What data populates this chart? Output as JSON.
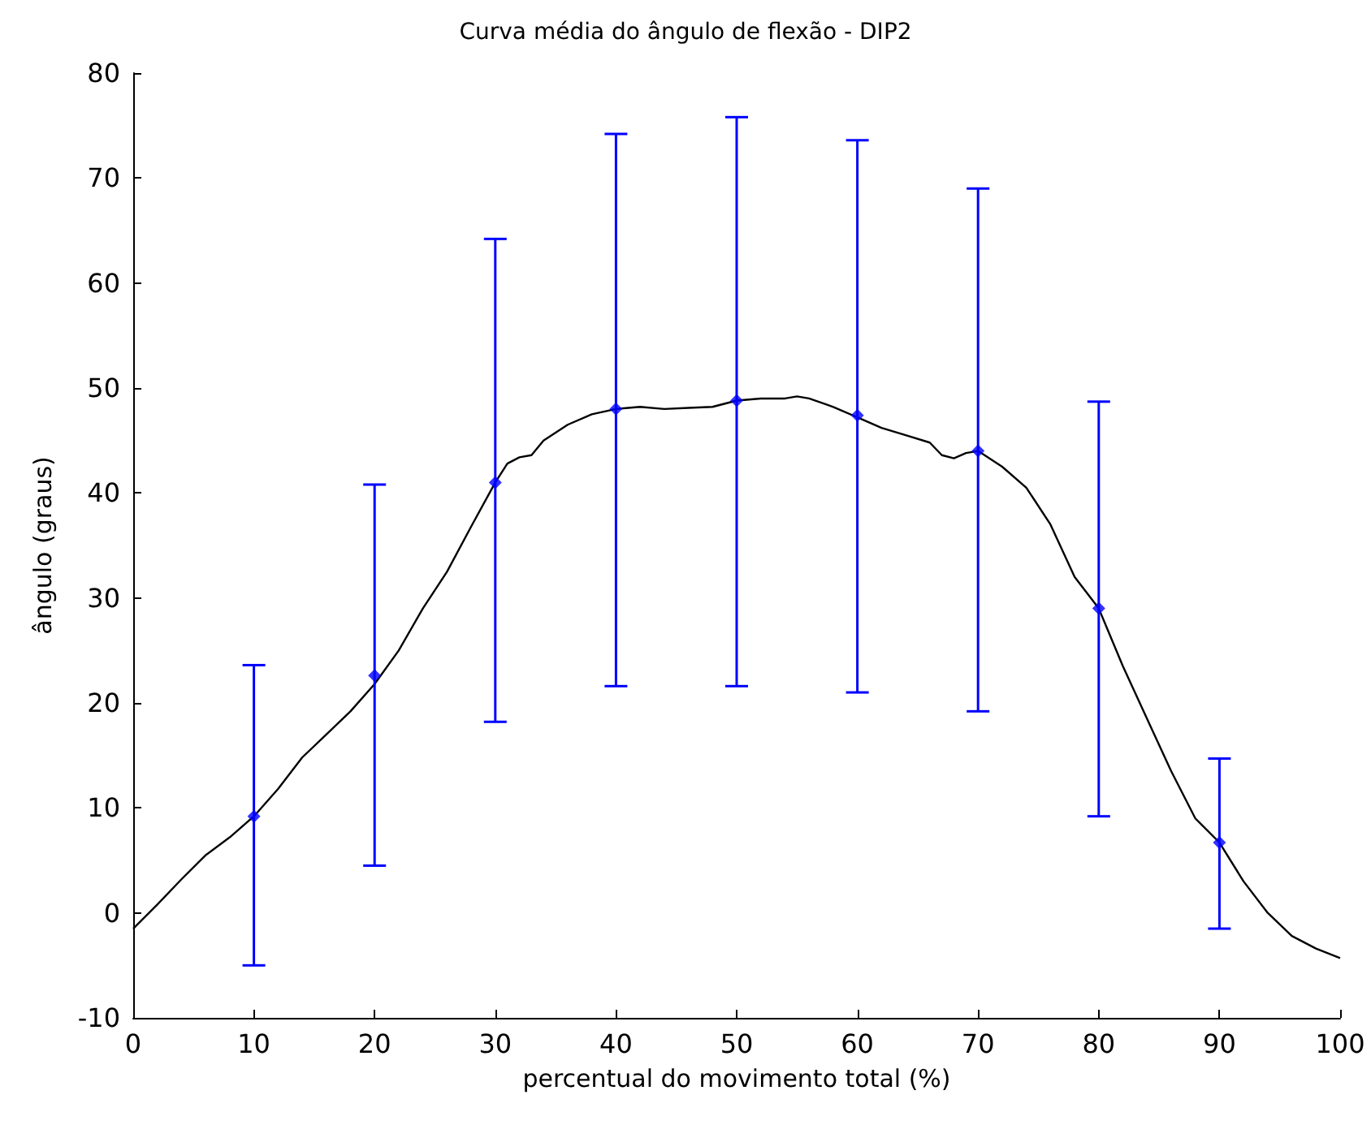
{
  "chart_data": {
    "type": "line",
    "title": "Curva média do ângulo de flexão - DIP2",
    "xlabel": "percentual do movimento total (%)",
    "ylabel": "ângulo (graus)",
    "xlim": [
      0,
      100
    ],
    "xticks": [
      0,
      10,
      20,
      30,
      40,
      50,
      60,
      70,
      80,
      90,
      100
    ],
    "ylim": [
      -10,
      80
    ],
    "yticks": [
      -10,
      0,
      10,
      20,
      30,
      40,
      50,
      60,
      70,
      80
    ],
    "grid": false,
    "series": [
      {
        "color": "#000000",
        "marker": "none",
        "line_style": "solid",
        "x": [
          0,
          2,
          4,
          6,
          8,
          10,
          12,
          14,
          16,
          18,
          20,
          22,
          24,
          26,
          28,
          30,
          31,
          32,
          33,
          34,
          36,
          38,
          40,
          42,
          44,
          46,
          48,
          50,
          52,
          54,
          55,
          56,
          58,
          60,
          62,
          64,
          66,
          67,
          68,
          69,
          70,
          72,
          74,
          76,
          78,
          80,
          82,
          84,
          86,
          88,
          90,
          92,
          94,
          96,
          98,
          100
        ],
        "values": [
          -1.5,
          0.8,
          3.2,
          5.5,
          7.2,
          9.2,
          11.8,
          14.8,
          17,
          19.2,
          21.8,
          25,
          29,
          32.5,
          36.8,
          41,
          42.8,
          43.4,
          43.6,
          45,
          46.5,
          47.5,
          48,
          48.2,
          48,
          48.1,
          48.2,
          48.8,
          49,
          49,
          49.2,
          49,
          48.2,
          47.2,
          46.2,
          45.5,
          44.8,
          43.6,
          43.3,
          43.8,
          44,
          42.5,
          40.5,
          37,
          32,
          29,
          23.5,
          18.5,
          13.5,
          9,
          6.7,
          3,
          0,
          -2.2,
          -3.4,
          -4.3
        ]
      },
      {
        "type": "scatter",
        "color": "#0000ff",
        "marker": "diamond",
        "x": [
          10,
          20,
          30,
          40,
          50,
          60,
          70,
          80,
          90
        ],
        "values": [
          9.2,
          22.6,
          41,
          48,
          48.8,
          47.4,
          44,
          29,
          6.7
        ],
        "errors": [
          [
            -5,
            23.6
          ],
          [
            4.5,
            40.8
          ],
          [
            18.2,
            64.2
          ],
          [
            21.6,
            74.2
          ],
          [
            21.6,
            75.8
          ],
          [
            21,
            73.6
          ],
          [
            19.2,
            69
          ],
          [
            9.2,
            48.7
          ],
          [
            -1.5,
            14.7
          ]
        ]
      }
    ]
  }
}
